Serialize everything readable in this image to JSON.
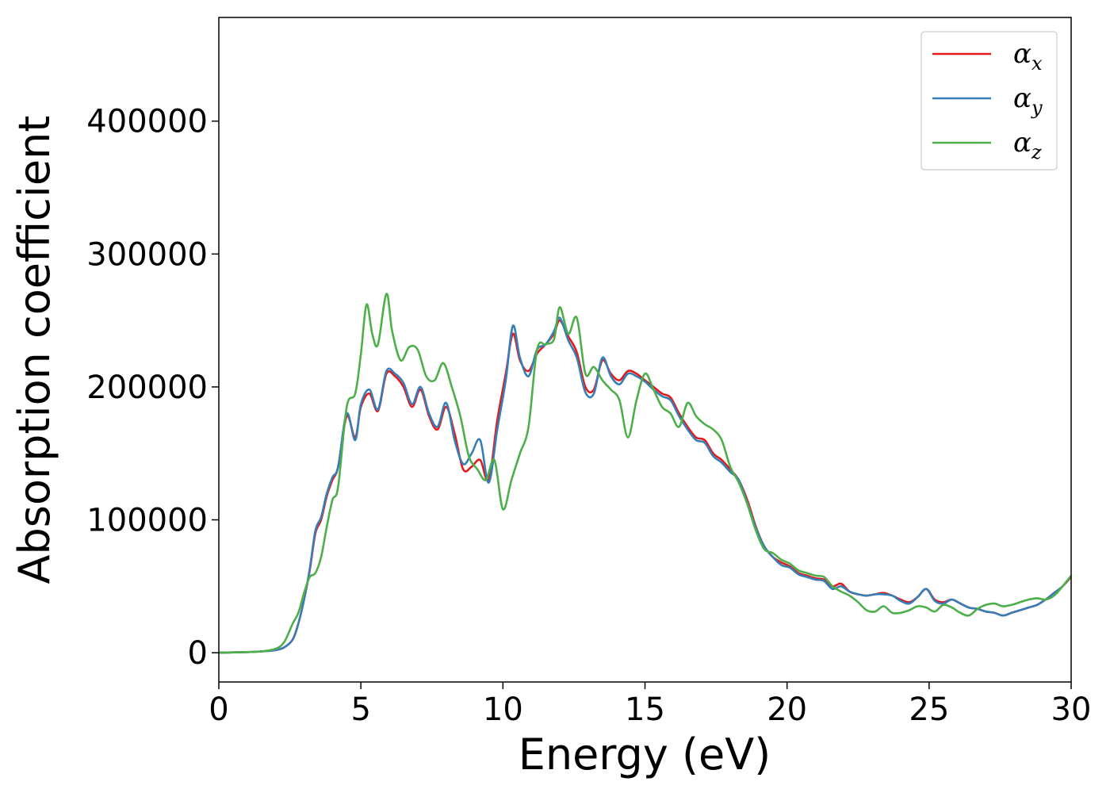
{
  "chart_data": {
    "type": "line",
    "title": "",
    "xlabel": "Energy (eV)",
    "ylabel": "Absorption coefficient",
    "xlim": [
      0,
      30
    ],
    "ylim": [
      -22000,
      478000
    ],
    "xticks": [
      0,
      5,
      10,
      15,
      20,
      25,
      30
    ],
    "xtick_labels": [
      "0",
      "5",
      "10",
      "15",
      "20",
      "25",
      "30"
    ],
    "yticks": [
      0,
      100000,
      200000,
      300000,
      400000
    ],
    "ytick_labels": [
      "0",
      "100000",
      "200000",
      "300000",
      "400000"
    ],
    "grid": false,
    "legend_position": "top-right",
    "series": [
      {
        "name": "α",
        "subscript": "x",
        "color": "#e41a1c",
        "x": [
          0,
          1,
          1.5,
          2,
          2.3,
          2.6,
          2.8,
          3.0,
          3.2,
          3.4,
          3.6,
          3.8,
          4.0,
          4.2,
          4.5,
          4.8,
          5.0,
          5.3,
          5.6,
          5.9,
          6.2,
          6.5,
          6.8,
          7.1,
          7.4,
          7.7,
          8.0,
          8.3,
          8.6,
          8.9,
          9.2,
          9.5,
          9.8,
          10.1,
          10.35,
          10.6,
          10.9,
          11.2,
          11.5,
          11.8,
          12.0,
          12.3,
          12.6,
          12.9,
          13.2,
          13.5,
          13.8,
          14.1,
          14.4,
          14.7,
          15.0,
          15.3,
          15.6,
          15.9,
          16.2,
          16.5,
          16.8,
          17.1,
          17.4,
          17.7,
          18.0,
          18.3,
          18.6,
          18.9,
          19.2,
          19.5,
          19.8,
          20.1,
          20.4,
          20.7,
          21.0,
          21.3,
          21.6,
          21.9,
          22.2,
          22.5,
          22.8,
          23.1,
          23.4,
          23.7,
          24.0,
          24.3,
          24.6,
          24.9,
          25.2,
          25.5,
          25.8,
          26.1,
          26.4,
          26.7,
          27.0,
          27.3,
          27.6,
          27.9,
          28.2,
          28.5,
          28.8,
          29.1,
          29.4,
          29.7,
          30.0
        ],
        "y": [
          0,
          500,
          1000,
          2000,
          4000,
          10000,
          22000,
          40000,
          62000,
          90000,
          100000,
          118000,
          130000,
          140000,
          178000,
          162000,
          185000,
          195000,
          182000,
          210000,
          208000,
          200000,
          185000,
          198000,
          178000,
          168000,
          185000,
          165000,
          138000,
          140000,
          145000,
          130000,
          175000,
          210000,
          240000,
          220000,
          212000,
          225000,
          232000,
          240000,
          250000,
          238000,
          226000,
          200000,
          198000,
          220000,
          210000,
          205000,
          212000,
          210000,
          205000,
          200000,
          195000,
          192000,
          180000,
          170000,
          162000,
          160000,
          150000,
          145000,
          138000,
          130000,
          115000,
          95000,
          80000,
          72000,
          68000,
          65000,
          60000,
          58000,
          56000,
          55000,
          50000,
          52000,
          46000,
          44000,
          43000,
          44000,
          45000,
          43000,
          40000,
          38000,
          42000,
          48000,
          40000,
          38000,
          40000,
          37000,
          34000,
          33000,
          31000,
          30000,
          28000,
          30000,
          32000,
          34000,
          36000,
          40000,
          45000,
          50000,
          57000
        ]
      },
      {
        "name": "α",
        "subscript": "y",
        "color": "#377eb8",
        "x": [
          0,
          1,
          1.5,
          2,
          2.3,
          2.6,
          2.8,
          3.0,
          3.2,
          3.4,
          3.6,
          3.8,
          4.0,
          4.2,
          4.5,
          4.8,
          5.0,
          5.3,
          5.6,
          5.9,
          6.2,
          6.5,
          6.8,
          7.1,
          7.4,
          7.7,
          8.0,
          8.3,
          8.6,
          8.9,
          9.2,
          9.5,
          9.8,
          10.1,
          10.35,
          10.6,
          10.9,
          11.2,
          11.5,
          11.8,
          12.0,
          12.3,
          12.6,
          12.9,
          13.2,
          13.5,
          13.8,
          14.1,
          14.4,
          14.7,
          15.0,
          15.3,
          15.6,
          15.9,
          16.2,
          16.5,
          16.8,
          17.1,
          17.4,
          17.7,
          18.0,
          18.3,
          18.6,
          18.9,
          19.2,
          19.5,
          19.8,
          20.1,
          20.4,
          20.7,
          21.0,
          21.3,
          21.6,
          21.9,
          22.2,
          22.5,
          22.8,
          23.1,
          23.4,
          23.7,
          24.0,
          24.3,
          24.6,
          24.9,
          25.2,
          25.5,
          25.8,
          26.1,
          26.4,
          26.7,
          27.0,
          27.3,
          27.6,
          27.9,
          28.2,
          28.5,
          28.8,
          29.1,
          29.4,
          29.7,
          30.0
        ],
        "y": [
          0,
          500,
          1000,
          2000,
          4000,
          10000,
          22000,
          40000,
          63000,
          92000,
          102000,
          120000,
          132000,
          140000,
          180000,
          160000,
          187000,
          198000,
          183000,
          212000,
          210000,
          203000,
          187000,
          200000,
          180000,
          170000,
          188000,
          160000,
          142000,
          150000,
          160000,
          128000,
          168000,
          205000,
          246000,
          222000,
          208000,
          228000,
          232000,
          242000,
          252000,
          235000,
          222000,
          196000,
          195000,
          222000,
          208000,
          202000,
          210000,
          208000,
          204000,
          198000,
          193000,
          190000,
          178000,
          168000,
          160000,
          158000,
          148000,
          143000,
          136000,
          130000,
          113000,
          94000,
          80000,
          72000,
          66000,
          64000,
          59000,
          57000,
          55000,
          54000,
          48000,
          50000,
          46000,
          44000,
          43000,
          44000,
          44000,
          43000,
          39000,
          37000,
          42000,
          48000,
          39000,
          37000,
          40000,
          37000,
          34000,
          33000,
          31000,
          30000,
          28000,
          30000,
          32000,
          34000,
          36000,
          40000,
          45000,
          50000,
          58000
        ]
      },
      {
        "name": "α",
        "subscript": "z",
        "color": "#4daf4a",
        "x": [
          0,
          1,
          1.5,
          2,
          2.3,
          2.6,
          2.8,
          3.0,
          3.2,
          3.4,
          3.6,
          3.8,
          4.0,
          4.2,
          4.5,
          4.8,
          5.0,
          5.2,
          5.4,
          5.6,
          5.9,
          6.1,
          6.4,
          6.7,
          7.0,
          7.3,
          7.6,
          7.9,
          8.2,
          8.5,
          8.8,
          9.1,
          9.4,
          9.7,
          10.0,
          10.3,
          10.6,
          10.9,
          11.2,
          11.5,
          11.8,
          12.0,
          12.3,
          12.6,
          12.9,
          13.2,
          13.5,
          13.8,
          14.1,
          14.4,
          14.7,
          15.0,
          15.3,
          15.6,
          15.9,
          16.2,
          16.5,
          16.8,
          17.1,
          17.4,
          17.7,
          18.0,
          18.3,
          18.6,
          18.9,
          19.2,
          19.5,
          19.8,
          20.1,
          20.4,
          20.7,
          21.0,
          21.3,
          21.6,
          21.9,
          22.2,
          22.5,
          22.8,
          23.1,
          23.4,
          23.7,
          24.0,
          24.3,
          24.6,
          24.9,
          25.2,
          25.5,
          25.8,
          26.1,
          26.4,
          26.7,
          27.0,
          27.3,
          27.6,
          27.9,
          28.2,
          28.5,
          28.8,
          29.1,
          29.4,
          29.7,
          30.0
        ],
        "y": [
          0,
          500,
          1000,
          3000,
          8000,
          22000,
          30000,
          45000,
          57000,
          60000,
          72000,
          95000,
          115000,
          125000,
          185000,
          195000,
          225000,
          262000,
          240000,
          232000,
          270000,
          242000,
          220000,
          230000,
          228000,
          208000,
          205000,
          218000,
          200000,
          178000,
          148000,
          138000,
          130000,
          145000,
          108000,
          130000,
          150000,
          170000,
          228000,
          232000,
          236000,
          260000,
          240000,
          252000,
          210000,
          215000,
          205000,
          198000,
          190000,
          162000,
          190000,
          210000,
          198000,
          185000,
          180000,
          170000,
          188000,
          178000,
          172000,
          168000,
          160000,
          140000,
          128000,
          112000,
          92000,
          78000,
          75000,
          70000,
          67000,
          62000,
          60000,
          58000,
          57000,
          50000,
          46000,
          43000,
          38000,
          32000,
          31000,
          35000,
          30000,
          30000,
          32000,
          35000,
          34000,
          31000,
          36000,
          34000,
          30000,
          28000,
          33000,
          36000,
          37000,
          35000,
          36000,
          38000,
          40000,
          41000,
          40000,
          43000,
          50000,
          58000
        ]
      }
    ]
  }
}
